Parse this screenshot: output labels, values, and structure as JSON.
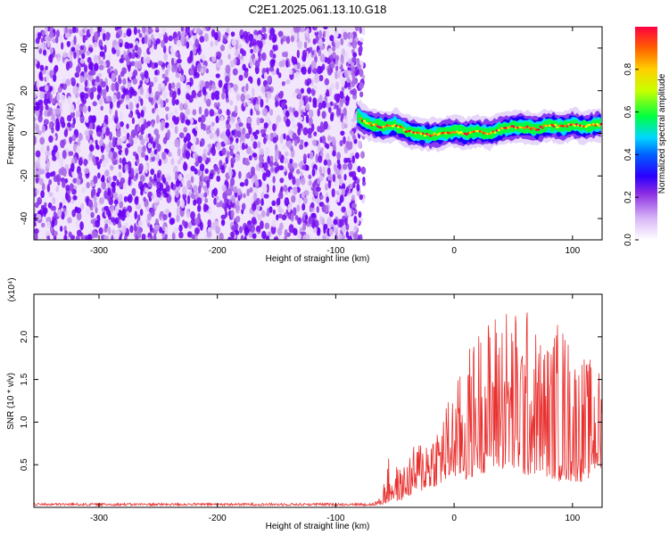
{
  "title": "C2E1.2025.061.13.10.G18",
  "chart_data": [
    {
      "type": "heatmap",
      "name": "spectrogram",
      "xlabel": "Height of straight line (km)",
      "ylabel": "Frequency (Hz)",
      "xlim": [
        -355,
        125
      ],
      "ylim": [
        -50,
        50
      ],
      "xticks": [
        -300,
        -200,
        -100,
        0,
        100
      ],
      "yticks": [
        -40,
        -20,
        0,
        20,
        40
      ],
      "noise_region_x": [
        -355,
        -82
      ],
      "signal_track": {
        "x": [
          -82,
          -75,
          -60,
          -50,
          -40,
          -30,
          -20,
          -10,
          0,
          10,
          20,
          30,
          40,
          50,
          60,
          70,
          80,
          90,
          100,
          110,
          120
        ],
        "freq": [
          8,
          5,
          3,
          4,
          1,
          0,
          -1,
          0,
          1,
          0,
          1,
          0,
          2,
          3,
          3,
          2,
          4,
          3,
          4,
          3,
          4
        ]
      },
      "colorbar": {
        "label": "Normalized spectral amplitude",
        "range": [
          0,
          1
        ],
        "ticks": [
          "0.0",
          "0.2",
          "0.4",
          "0.6",
          "0.8"
        ],
        "colors": [
          "#ffffff",
          "#c28af0",
          "#7b00ff",
          "#0000ff",
          "#00d0ff",
          "#00ff00",
          "#ffff00",
          "#ff8000",
          "#ff0000"
        ]
      }
    },
    {
      "type": "line",
      "name": "snr",
      "xlabel": "Height of straight line (km)",
      "ylabel": "SNR (10 * v/v)",
      "scale_label": "(x10⁴)",
      "xlim": [
        -355,
        125
      ],
      "ylim": [
        0,
        2.5
      ],
      "xticks": [
        -300,
        -200,
        -100,
        0,
        100
      ],
      "yticks": [
        "0.5",
        "1.0",
        "1.5",
        "2.0"
      ],
      "color": "#e8312f",
      "envelope": {
        "x": [
          -355,
          -100,
          -70,
          -62,
          -55,
          -45,
          -35,
          -25,
          -15,
          -5,
          0,
          10,
          20,
          30,
          40,
          50,
          60,
          70,
          80,
          90,
          100,
          110,
          120,
          125
        ],
        "min": [
          0.02,
          0.02,
          0.02,
          0.03,
          0.05,
          0.08,
          0.15,
          0.2,
          0.25,
          0.3,
          0.35,
          0.3,
          0.4,
          0.4,
          0.45,
          0.4,
          0.35,
          0.4,
          0.35,
          0.3,
          0.3,
          0.3,
          0.4,
          0.4
        ],
        "max": [
          0.05,
          0.05,
          0.05,
          0.12,
          0.6,
          0.45,
          0.7,
          0.9,
          1.0,
          1.3,
          1.4,
          1.8,
          2.15,
          2.25,
          2.5,
          2.35,
          2.4,
          2.1,
          2.0,
          2.3,
          1.9,
          1.8,
          1.7,
          1.6
        ]
      }
    }
  ]
}
